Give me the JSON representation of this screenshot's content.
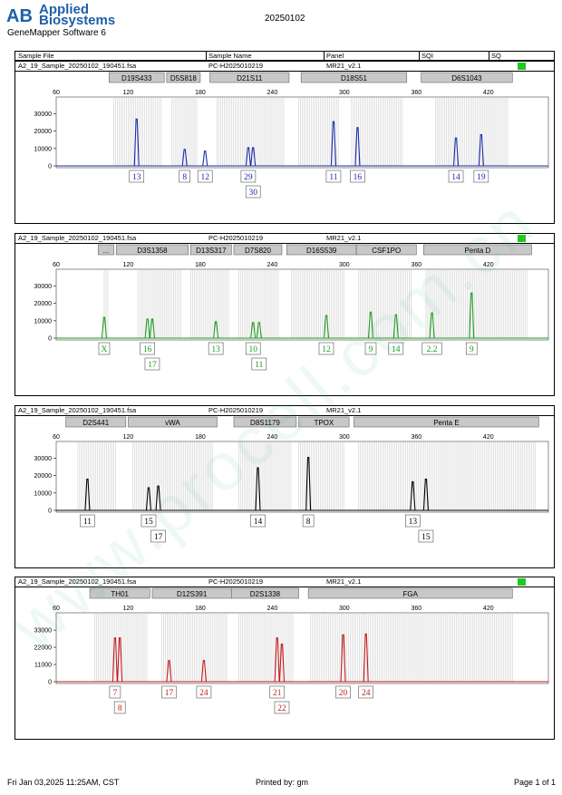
{
  "header": {
    "brand_line1": "Applied",
    "brand_line2": "Biosystems",
    "logo_letters": "AB",
    "software": "GeneMapper Software 6",
    "run_date": "20250102",
    "columns": [
      "Sample File",
      "Sample Name",
      "Panel",
      "SQI",
      "SQ"
    ]
  },
  "panel_meta": {
    "sample_file": "A2_19_Sample_20250102_190451.fsa",
    "sample_name": "PC-H2025010219",
    "panel": "MR21_v2.1"
  },
  "footer": {
    "date": "Fri Jan 03,2025 11:25AM, CST",
    "printed_by": "Printed by: gm",
    "page": "Page 1 of 1"
  },
  "watermark": "www.procell.com.cn",
  "chart_data": [
    {
      "type": "line",
      "color": "#1a2aa8",
      "xlim": [
        60,
        470
      ],
      "x_ticks": [
        60,
        120,
        180,
        240,
        300,
        360,
        420
      ],
      "ylim": [
        0,
        36000
      ],
      "y_ticks": [
        0,
        10000,
        20000,
        30000
      ],
      "markers": [
        {
          "label": "D19S433",
          "range": [
            104,
            150
          ]
        },
        {
          "label": "D5S818",
          "range": [
            152,
            180
          ]
        },
        {
          "label": "D21S11",
          "range": [
            188,
            254
          ]
        },
        {
          "label": "D18S51",
          "range": [
            264,
            352
          ]
        },
        {
          "label": "D6S1043",
          "range": [
            364,
            440
          ]
        }
      ],
      "bins": [
        [
          108,
          148
        ],
        [
          156,
          178
        ],
        [
          194,
          250
        ],
        [
          262,
          296
        ],
        [
          306,
          348
        ],
        [
          376,
          436
        ]
      ],
      "peaks": [
        {
          "x": 127,
          "h": 27000,
          "labels": [
            "13"
          ]
        },
        {
          "x": 167,
          "h": 9500,
          "labels": [
            "8"
          ]
        },
        {
          "x": 184,
          "h": 8500,
          "labels": [
            "12"
          ]
        },
        {
          "x": 220,
          "h": 10500,
          "labels": [
            "29"
          ]
        },
        {
          "x": 224,
          "h": 10500,
          "labels": [
            "30"
          ]
        },
        {
          "x": 291,
          "h": 25500,
          "labels": [
            "11"
          ]
        },
        {
          "x": 311,
          "h": 22000,
          "labels": [
            "16"
          ]
        },
        {
          "x": 393,
          "h": 16000,
          "labels": [
            "14"
          ]
        },
        {
          "x": 414,
          "h": 18000,
          "labels": [
            "19"
          ]
        }
      ]
    },
    {
      "type": "line",
      "color": "#1f9a1f",
      "xlim": [
        60,
        470
      ],
      "x_ticks": [
        60,
        120,
        180,
        240,
        300,
        360,
        420
      ],
      "ylim": [
        0,
        36000
      ],
      "y_ticks": [
        0,
        10000,
        20000,
        30000
      ],
      "markers": [
        {
          "label": "...",
          "range": [
            95,
            108
          ]
        },
        {
          "label": "D3S1358",
          "range": [
            110,
            170
          ]
        },
        {
          "label": "D13S317",
          "range": [
            172,
            206
          ]
        },
        {
          "label": "D7S820",
          "range": [
            208,
            248
          ]
        },
        {
          "label": "D16S539",
          "range": [
            252,
            310
          ]
        },
        {
          "label": "CSF1PO",
          "range": [
            310,
            360
          ]
        },
        {
          "label": "Penta D",
          "range": [
            366,
            456
          ]
        }
      ],
      "bins": [
        [
          100,
          104
        ],
        [
          128,
          164
        ],
        [
          172,
          204
        ],
        [
          212,
          246
        ],
        [
          256,
          300
        ],
        [
          312,
          356
        ],
        [
          368,
          452
        ]
      ],
      "peaks": [
        {
          "x": 100,
          "h": 12000,
          "labels": [
            "X"
          ]
        },
        {
          "x": 136,
          "h": 11000,
          "labels": [
            "16"
          ]
        },
        {
          "x": 140,
          "h": 11000,
          "labels": [
            "17"
          ]
        },
        {
          "x": 193,
          "h": 9500,
          "labels": [
            "13"
          ]
        },
        {
          "x": 224,
          "h": 9000,
          "labels": [
            "10"
          ]
        },
        {
          "x": 229,
          "h": 9000,
          "labels": [
            "11"
          ]
        },
        {
          "x": 285,
          "h": 13000,
          "labels": [
            "12"
          ]
        },
        {
          "x": 322,
          "h": 15000,
          "labels": [
            "9"
          ]
        },
        {
          "x": 343,
          "h": 13500,
          "labels": [
            "14"
          ]
        },
        {
          "x": 373,
          "h": 14500,
          "labels": [
            "2.2"
          ]
        },
        {
          "x": 406,
          "h": 26000,
          "labels": [
            "9"
          ]
        }
      ]
    },
    {
      "type": "line",
      "color": "#000000",
      "xlim": [
        60,
        470
      ],
      "x_ticks": [
        60,
        120,
        180,
        240,
        300,
        360,
        420
      ],
      "ylim": [
        0,
        36000
      ],
      "y_ticks": [
        0,
        10000,
        20000,
        30000
      ],
      "markers": [
        {
          "label": "D2S441",
          "range": [
            68,
            118
          ]
        },
        {
          "label": "vWA",
          "range": [
            120,
            194
          ]
        },
        {
          "label": "D8S1179",
          "range": [
            208,
            260
          ]
        },
        {
          "label": "TPOX",
          "range": [
            262,
            304
          ]
        },
        {
          "label": "Penta E",
          "range": [
            308,
            462
          ]
        }
      ],
      "bins": [
        [
          78,
          110
        ],
        [
          124,
          190
        ],
        [
          212,
          256
        ],
        [
          262,
          300
        ],
        [
          312,
          460
        ]
      ],
      "peaks": [
        {
          "x": 86,
          "h": 18000,
          "labels": [
            "11"
          ]
        },
        {
          "x": 137,
          "h": 13000,
          "labels": [
            "15"
          ]
        },
        {
          "x": 145,
          "h": 14000,
          "labels": [
            "17"
          ]
        },
        {
          "x": 228,
          "h": 24500,
          "labels": [
            "14"
          ]
        },
        {
          "x": 270,
          "h": 30500,
          "labels": [
            "8"
          ]
        },
        {
          "x": 357,
          "h": 16500,
          "labels": [
            "13"
          ]
        },
        {
          "x": 368,
          "h": 18000,
          "labels": [
            "15"
          ]
        }
      ]
    },
    {
      "type": "line",
      "color": "#c41a1a",
      "xlim": [
        60,
        470
      ],
      "x_ticks": [
        60,
        120,
        180,
        240,
        300,
        360,
        420
      ],
      "ylim": [
        0,
        40000
      ],
      "y_ticks": [
        0,
        11000,
        22000,
        33000
      ],
      "markers": [
        {
          "label": "TH01",
          "range": [
            88,
            138
          ]
        },
        {
          "label": "D12S391",
          "range": [
            140,
            206
          ]
        },
        {
          "label": "D2S1338",
          "range": [
            206,
            262
          ]
        },
        {
          "label": "FGA",
          "range": [
            270,
            440
          ]
        }
      ],
      "bins": [
        [
          92,
          136
        ],
        [
          148,
          202
        ],
        [
          212,
          258
        ],
        [
          272,
          440
        ]
      ],
      "peaks": [
        {
          "x": 109,
          "h": 28000,
          "labels": [
            "7"
          ]
        },
        {
          "x": 113,
          "h": 28000,
          "labels": [
            "8"
          ]
        },
        {
          "x": 154,
          "h": 13500,
          "labels": [
            "17"
          ]
        },
        {
          "x": 183,
          "h": 13500,
          "labels": [
            "24"
          ]
        },
        {
          "x": 244,
          "h": 28000,
          "labels": [
            "21"
          ]
        },
        {
          "x": 248,
          "h": 24000,
          "labels": [
            "22"
          ]
        },
        {
          "x": 299,
          "h": 30000,
          "labels": [
            "20"
          ]
        },
        {
          "x": 318,
          "h": 30500,
          "labels": [
            "24"
          ]
        }
      ]
    }
  ]
}
